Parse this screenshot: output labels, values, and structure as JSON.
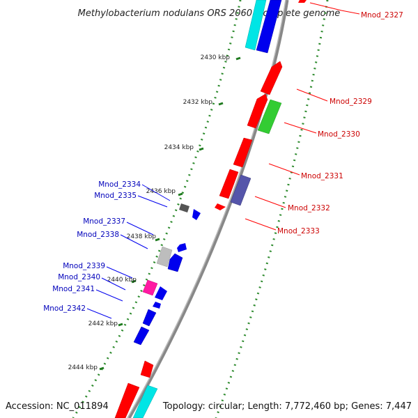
{
  "title": "Methylobacterium nodulans ORS 2060, complete genome",
  "footer": {
    "accession": "Accession: NC_011894",
    "topology": "Topology: circular; Length: 7,772,460 bp; Genes: 7,447"
  },
  "colors": {
    "forward_label": "#cc0000",
    "reverse_label": "#0000bb",
    "backbone": "#888888",
    "dotted_track": "#2e8b2e",
    "red": "#ff0000",
    "blue": "#0000ee",
    "cyan": "#00e5e5",
    "green": "#33cc33",
    "slate": "#5555aa",
    "gray": "#bdbdbd",
    "dark_gray": "#555555",
    "magenta": "#ff1aa3"
  },
  "kbp_ticks": [
    {
      "label": "2430 kbp"
    },
    {
      "label": "2432 kbp"
    },
    {
      "label": "2434 kbp"
    },
    {
      "label": "2436 kbp"
    },
    {
      "label": "2438 kbp"
    },
    {
      "label": "2440 kbp"
    },
    {
      "label": "2442 kbp"
    },
    {
      "label": "2444 kbp"
    }
  ],
  "forward_genes": [
    {
      "label": "Mnod_2327"
    },
    {
      "label": "Mnod_2329"
    },
    {
      "label": "Mnod_2330"
    },
    {
      "label": "Mnod_2331"
    },
    {
      "label": "Mnod_2332"
    },
    {
      "label": "Mnod_2333"
    }
  ],
  "reverse_genes": [
    {
      "label": "Mnod_2334"
    },
    {
      "label": "Mnod_2335"
    },
    {
      "label": "Mnod_2337"
    },
    {
      "label": "Mnod_2338"
    },
    {
      "label": "Mnod_2339"
    },
    {
      "label": "Mnod_2340"
    },
    {
      "label": "Mnod_2341"
    },
    {
      "label": "Mnod_2342"
    }
  ]
}
